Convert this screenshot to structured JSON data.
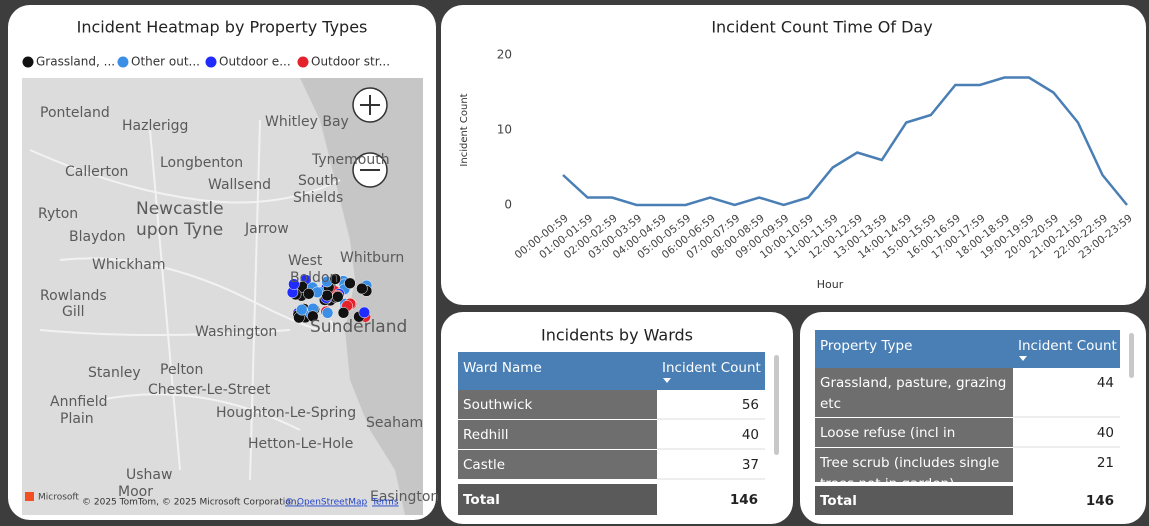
{
  "map": {
    "title": "Incident Heatmap by Property Types",
    "legend": [
      {
        "name": "Grassland, ...",
        "color": "#111111"
      },
      {
        "name": "Other out...",
        "color": "#3a8ee6"
      },
      {
        "name": "Outdoor e...",
        "color": "#1f2bff"
      },
      {
        "name": "Outdoor str...",
        "color": "#e3222c"
      }
    ],
    "places": [
      "Ponteland",
      "Hazlerigg",
      "Whitley Bay",
      "Longbenton",
      "Tynemouth",
      "Callerton",
      "Wallsend",
      "South",
      "Shields",
      "Newcastle",
      "upon Tyne",
      "Ryton",
      "Jarrow",
      "Blaydon",
      "Whickham",
      "West",
      "Whitburn",
      "Boldon",
      "Rowlands",
      "Gill",
      "Washington",
      "Sunderland",
      "Stanley",
      "Pelton",
      "Chester-Le-Street",
      "Annfield",
      "Plain",
      "Houghton-Le-Spring",
      "Seaham",
      "Hetton-Le-Hole",
      "Ushaw",
      "Moor",
      "Easington"
    ],
    "attribution": [
      "Microsoft",
      "© 2025 TomTom, © 2025 Microsoft Corporation,",
      "© OpenStreetMap",
      "Terms"
    ]
  },
  "chart_data": {
    "type": "line",
    "title": "Incident Count Time Of Day",
    "x_label": "Hour",
    "y_label": "Incident Count",
    "categories": [
      "00:00-00:59",
      "01:00-01:59",
      "02:00-02:59",
      "03:00-03:59",
      "04:00-04:59",
      "05:00-05:59",
      "06:00-06:59",
      "07:00-07:59",
      "08:00-08:59",
      "09:00-09:59",
      "10:00-10:59",
      "11:00-11:59",
      "12:00-12:59",
      "13:00-13:59",
      "14:00-14:59",
      "15:00-15:59",
      "16:00-16:59",
      "17:00-17:59",
      "18:00-18:59",
      "19:00-19:59",
      "20:00-20:59",
      "21:00-21:59",
      "22:00-22:59",
      "23:00-23:59"
    ],
    "values": [
      4,
      1,
      1,
      0,
      0,
      0,
      1,
      0,
      1,
      0,
      1,
      5,
      7,
      6,
      11,
      12,
      16,
      16,
      17,
      17,
      15,
      11,
      4,
      0
    ],
    "color": "#4a7fb5",
    "ylim": [
      0,
      20
    ],
    "yticks": [
      0,
      10,
      20
    ]
  },
  "wards_table": {
    "title": "Incidents by Wards",
    "columns": [
      "Ward Name",
      "Incident Count"
    ],
    "rows": [
      [
        "Southwick",
        "56"
      ],
      [
        "Redhill",
        "40"
      ],
      [
        "Castle",
        "37"
      ]
    ],
    "total": [
      "Total",
      "146"
    ]
  },
  "property_table": {
    "columns": [
      "Property Type",
      "Incident Count"
    ],
    "rows": [
      [
        "Grassland, pasture, grazing etc",
        "44"
      ],
      [
        "Loose refuse (incl in garden)",
        "40"
      ],
      [
        "Tree scrub (includes single trees not in garden)",
        "21"
      ]
    ],
    "total": [
      "Total",
      "146"
    ]
  }
}
